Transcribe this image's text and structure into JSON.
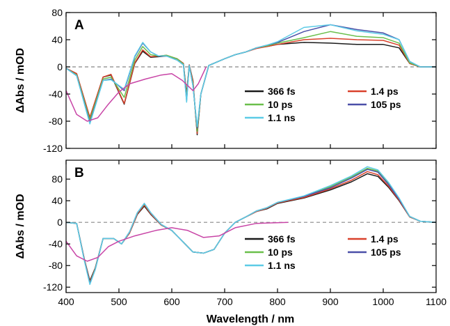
{
  "chart_data": [
    {
      "type": "line",
      "panel_label": "A",
      "xlabel": "",
      "ylabel": "ΔAbs / mOD",
      "xlim": [
        400,
        1100
      ],
      "ylim": [
        -120,
        80
      ],
      "xticks": [
        400,
        500,
        600,
        700,
        800,
        900,
        1000,
        1100
      ],
      "yticks": [
        -120,
        -80,
        -40,
        0,
        40,
        80
      ],
      "zero_line": true,
      "legend_position": "lower-right",
      "series": [
        {
          "name": "366 fs",
          "color": "#1a1a1a",
          "x": [
            400,
            420,
            445,
            470,
            485,
            510,
            530,
            545,
            560,
            575,
            590,
            610,
            622,
            628,
            633,
            640,
            648,
            655,
            670,
            700,
            720,
            740,
            760,
            780,
            800,
            850,
            900,
            950,
            1000,
            1030,
            1050,
            1070,
            1100
          ],
          "y": [
            -2,
            -10,
            -75,
            -15,
            -12,
            -55,
            5,
            23,
            14,
            15,
            16,
            12,
            5,
            -40,
            3,
            -20,
            -100,
            -40,
            2,
            12,
            18,
            22,
            28,
            30,
            33,
            36,
            35,
            33,
            33,
            28,
            5,
            0,
            0
          ]
        },
        {
          "name": "1.4 ps",
          "color": "#d9412b",
          "x": [
            400,
            420,
            445,
            470,
            485,
            510,
            530,
            545,
            560,
            575,
            590,
            610,
            622,
            628,
            633,
            640,
            648,
            655,
            670,
            700,
            720,
            740,
            760,
            780,
            800,
            850,
            900,
            950,
            1000,
            1030,
            1050,
            1070,
            1100
          ],
          "y": [
            -2,
            -10,
            -74,
            -15,
            -11,
            -54,
            6,
            25,
            15,
            16,
            17,
            12,
            5,
            -42,
            3,
            -21,
            -98,
            -40,
            2,
            12,
            18,
            22,
            27,
            30,
            33,
            40,
            42,
            40,
            39,
            32,
            5,
            0,
            0
          ]
        },
        {
          "name": "10 ps",
          "color": "#6abf4b",
          "x": [
            400,
            420,
            445,
            470,
            485,
            510,
            530,
            545,
            560,
            575,
            590,
            610,
            622,
            628,
            633,
            640,
            648,
            655,
            670,
            700,
            720,
            740,
            760,
            780,
            800,
            850,
            900,
            950,
            1000,
            1030,
            1050,
            1070,
            1100
          ],
          "y": [
            -2,
            -12,
            -78,
            -18,
            -15,
            -45,
            10,
            30,
            18,
            16,
            17,
            12,
            4,
            -45,
            2,
            -25,
            -95,
            -40,
            2,
            12,
            18,
            22,
            28,
            31,
            35,
            43,
            52,
            45,
            43,
            35,
            6,
            0,
            0
          ]
        },
        {
          "name": "105 ps",
          "color": "#4b4fa8",
          "x": [
            400,
            420,
            445,
            470,
            485,
            510,
            530,
            545,
            560,
            575,
            590,
            610,
            622,
            628,
            633,
            640,
            648,
            655,
            670,
            700,
            720,
            740,
            760,
            780,
            800,
            850,
            900,
            950,
            1000,
            1030,
            1050,
            1070,
            1100
          ],
          "y": [
            -2,
            -13,
            -82,
            -20,
            -18,
            -35,
            15,
            35,
            22,
            16,
            16,
            10,
            3,
            -50,
            2,
            -28,
            -90,
            -40,
            2,
            12,
            18,
            22,
            28,
            32,
            36,
            52,
            62,
            55,
            50,
            40,
            8,
            0,
            0
          ]
        },
        {
          "name": "1.1 ns",
          "color": "#5ccbe6",
          "x": [
            400,
            420,
            445,
            470,
            485,
            510,
            530,
            545,
            560,
            575,
            590,
            610,
            622,
            628,
            633,
            640,
            648,
            655,
            670,
            700,
            720,
            740,
            760,
            780,
            800,
            850,
            900,
            950,
            1000,
            1030,
            1050,
            1070,
            1100
          ],
          "y": [
            -2,
            -13,
            -84,
            -20,
            -19,
            -33,
            16,
            36,
            22,
            16,
            16,
            10,
            3,
            -52,
            2,
            -28,
            -88,
            -40,
            2,
            12,
            18,
            22,
            28,
            32,
            37,
            58,
            62,
            53,
            48,
            40,
            8,
            0,
            0
          ]
        },
        {
          "name": "",
          "color": "#c844a6",
          "x": [
            400,
            420,
            440,
            460,
            480,
            500,
            520,
            550,
            580,
            600,
            620,
            640,
            650,
            665
          ],
          "y": [
            -35,
            -70,
            -80,
            -75,
            -55,
            -37,
            -25,
            -18,
            -12,
            -10,
            -20,
            -35,
            -25,
            0
          ]
        }
      ]
    },
    {
      "type": "line",
      "panel_label": "B",
      "xlabel": "Wavelength / nm",
      "ylabel": "ΔAbs / mOD",
      "xlim": [
        400,
        1100
      ],
      "ylim": [
        -130,
        115
      ],
      "xticks": [
        400,
        500,
        600,
        700,
        800,
        900,
        1000,
        1100
      ],
      "yticks": [
        -120,
        -80,
        -40,
        0,
        40,
        80
      ],
      "zero_line": true,
      "legend_position": "lower-right",
      "series": [
        {
          "name": "366 fs",
          "color": "#1a1a1a",
          "x": [
            400,
            420,
            435,
            445,
            455,
            470,
            490,
            505,
            520,
            535,
            548,
            560,
            580,
            600,
            620,
            640,
            660,
            680,
            700,
            720,
            740,
            760,
            780,
            800,
            850,
            900,
            940,
            970,
            990,
            1010,
            1030,
            1050,
            1070,
            1100
          ],
          "y": [
            0,
            -2,
            -70,
            -108,
            -85,
            -30,
            -30,
            -40,
            -20,
            15,
            30,
            15,
            -5,
            -15,
            -35,
            -55,
            -57,
            -50,
            -20,
            0,
            10,
            20,
            25,
            35,
            45,
            60,
            75,
            90,
            85,
            65,
            40,
            10,
            2,
            0
          ]
        },
        {
          "name": "1.4 ps",
          "color": "#d9412b",
          "x": [
            400,
            420,
            435,
            445,
            455,
            470,
            490,
            505,
            520,
            535,
            548,
            560,
            580,
            600,
            620,
            640,
            660,
            680,
            700,
            720,
            740,
            760,
            780,
            800,
            850,
            900,
            940,
            970,
            990,
            1010,
            1030,
            1050,
            1070,
            1100
          ],
          "y": [
            0,
            -2,
            -70,
            -110,
            -86,
            -30,
            -30,
            -40,
            -20,
            16,
            32,
            16,
            -5,
            -15,
            -35,
            -55,
            -57,
            -50,
            -20,
            0,
            10,
            20,
            26,
            36,
            46,
            62,
            78,
            94,
            88,
            67,
            41,
            10,
            2,
            0
          ]
        },
        {
          "name": "10 ps",
          "color": "#6abf4b",
          "x": [
            400,
            420,
            435,
            445,
            455,
            470,
            490,
            505,
            520,
            535,
            548,
            560,
            580,
            600,
            620,
            640,
            660,
            680,
            700,
            720,
            740,
            760,
            780,
            800,
            850,
            900,
            940,
            970,
            990,
            1010,
            1030,
            1050,
            1070,
            1100
          ],
          "y": [
            0,
            -2,
            -72,
            -112,
            -87,
            -30,
            -30,
            -40,
            -18,
            18,
            34,
            18,
            -4,
            -15,
            -35,
            -55,
            -57,
            -50,
            -20,
            0,
            10,
            21,
            27,
            37,
            48,
            66,
            84,
            100,
            95,
            72,
            44,
            11,
            2,
            0
          ]
        },
        {
          "name": "105 ps",
          "color": "#4b4fa8",
          "x": [
            400,
            420,
            435,
            445,
            455,
            470,
            490,
            505,
            520,
            535,
            548,
            560,
            580,
            600,
            620,
            640,
            660,
            680,
            700,
            720,
            740,
            760,
            780,
            800,
            850,
            900,
            940,
            970,
            990,
            1010,
            1030,
            1050,
            1070,
            1100
          ],
          "y": [
            0,
            -2,
            -72,
            -113,
            -88,
            -30,
            -30,
            -40,
            -18,
            18,
            35,
            18,
            -4,
            -15,
            -35,
            -55,
            -57,
            -50,
            -20,
            0,
            10,
            21,
            27,
            37,
            48,
            64,
            82,
            98,
            93,
            70,
            43,
            11,
            2,
            0
          ]
        },
        {
          "name": "1.1 ns",
          "color": "#5ccbe6",
          "x": [
            400,
            420,
            435,
            445,
            455,
            470,
            490,
            505,
            520,
            535,
            548,
            560,
            580,
            600,
            620,
            640,
            660,
            680,
            700,
            720,
            740,
            760,
            780,
            800,
            850,
            900,
            940,
            970,
            990,
            1010,
            1030,
            1050,
            1070,
            1100
          ],
          "y": [
            0,
            -2,
            -73,
            -115,
            -88,
            -30,
            -30,
            -40,
            -18,
            18,
            35,
            18,
            -4,
            -15,
            -35,
            -55,
            -57,
            -50,
            -20,
            0,
            10,
            21,
            27,
            37,
            49,
            68,
            86,
            103,
            97,
            74,
            45,
            11,
            2,
            0
          ]
        },
        {
          "name": "",
          "color": "#c844a6",
          "x": [
            400,
            420,
            440,
            460,
            480,
            500,
            530,
            570,
            600,
            630,
            660,
            690,
            720,
            760,
            820
          ],
          "y": [
            -35,
            -62,
            -72,
            -65,
            -45,
            -35,
            -25,
            -15,
            -10,
            -15,
            -28,
            -25,
            -10,
            -2,
            0
          ]
        }
      ]
    }
  ]
}
